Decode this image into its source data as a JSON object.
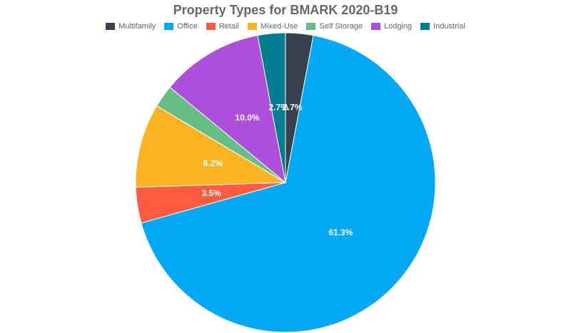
{
  "chart_data": {
    "type": "pie",
    "title": "Property Types for BMARK 2020-B19",
    "legend_position": "top",
    "categories": [
      "Multifamily",
      "Office",
      "Retail",
      "Mixed-Use",
      "Self Storage",
      "Lodging",
      "Industrial"
    ],
    "values": [
      2.7,
      61.3,
      3.5,
      8.2,
      2.2,
      10.0,
      2.7
    ],
    "labels": [
      "2.7%",
      "61.3%",
      "3.5%",
      "8.2%",
      "",
      "10.0%",
      "2.7%"
    ],
    "colors": [
      "#36414d",
      "#03a9f4",
      "#ff5c3f",
      "#fcb322",
      "#67be85",
      "#ad4fdb",
      "#037d92"
    ]
  }
}
